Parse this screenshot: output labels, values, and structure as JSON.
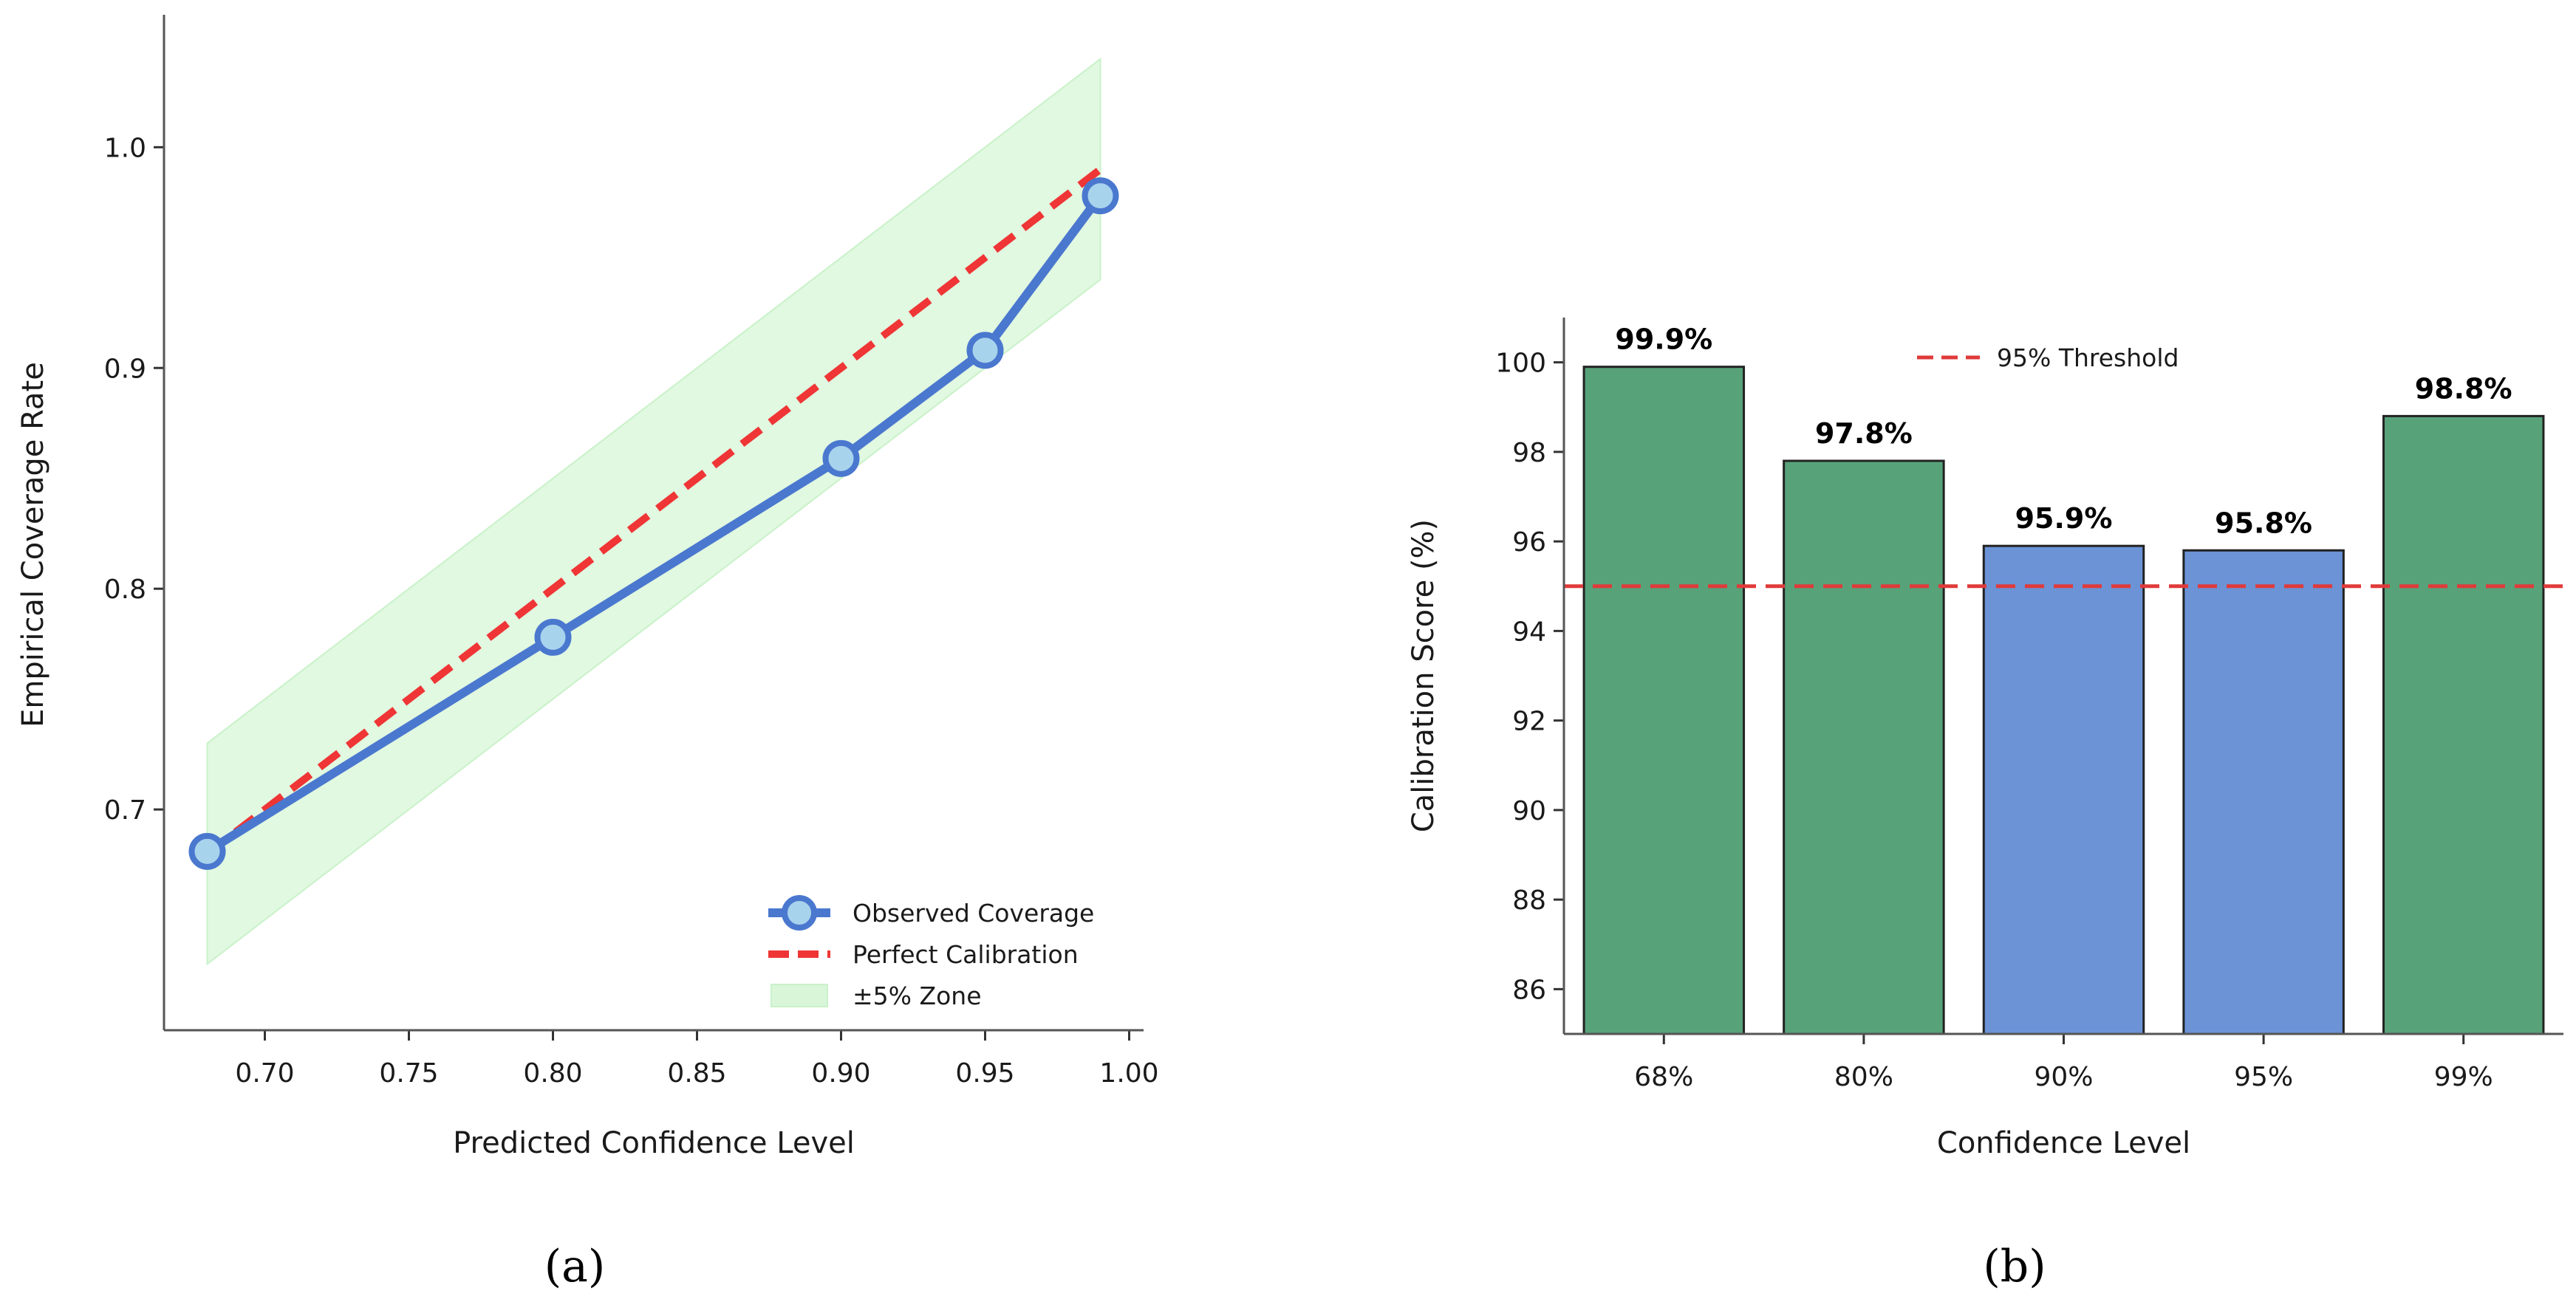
{
  "colors": {
    "observed": "#4a78cf",
    "marker_fill": "#a8d3ec",
    "perfect": "#ef3535",
    "zone": "#c9f2c9",
    "bar_green": "#58a27a",
    "bar_blue": "#6b93d6",
    "threshold": "#e03a3a"
  },
  "chart_data": [
    {
      "type": "line",
      "caption": "(a)",
      "xlabel": "Predicted Confidence Level",
      "ylabel": "Empirical Coverage Rate",
      "xlim": [
        0.665,
        1.005
      ],
      "ylim": [
        0.6,
        1.06
      ],
      "xticks": [
        0.7,
        0.75,
        0.8,
        0.85,
        0.9,
        0.95,
        1.0
      ],
      "xtick_labels": [
        "0.70",
        "0.75",
        "0.80",
        "0.85",
        "0.90",
        "0.95",
        "1.00"
      ],
      "yticks": [
        0.7,
        0.8,
        0.9,
        1.0
      ],
      "ytick_labels": [
        "0.7",
        "0.8",
        "0.9",
        "1.0"
      ],
      "series": [
        {
          "name": "Observed Coverage",
          "x": [
            0.68,
            0.8,
            0.9,
            0.95,
            0.99
          ],
          "y": [
            0.681,
            0.778,
            0.859,
            0.908,
            0.978
          ]
        },
        {
          "name": "Perfect Calibration",
          "x": [
            0.68,
            0.99
          ],
          "y": [
            0.68,
            0.99
          ]
        },
        {
          "name": "±5% Zone",
          "x": [
            0.68,
            0.99
          ],
          "lower": [
            0.63,
            0.94
          ],
          "upper": [
            0.73,
            1.04
          ]
        }
      ],
      "legend": {
        "position": "lower-right",
        "entries": [
          "Observed Coverage",
          "Perfect Calibration",
          "±5% Zone"
        ]
      }
    },
    {
      "type": "bar",
      "caption": "(b)",
      "xlabel": "Confidence Level",
      "ylabel": "Calibration Score (%)",
      "categories": [
        "68%",
        "80%",
        "90%",
        "95%",
        "99%"
      ],
      "values": [
        99.9,
        97.8,
        95.9,
        95.8,
        98.8
      ],
      "value_labels": [
        "99.9%",
        "97.8%",
        "95.9%",
        "95.8%",
        "98.8%"
      ],
      "bar_colors": [
        "green",
        "green",
        "blue",
        "blue",
        "green"
      ],
      "ylim": [
        85,
        101
      ],
      "yticks": [
        86,
        88,
        90,
        92,
        94,
        96,
        98,
        100
      ],
      "ytick_labels": [
        "86",
        "88",
        "90",
        "92",
        "94",
        "96",
        "98",
        "100"
      ],
      "threshold": {
        "label": "95% Threshold",
        "value": 95
      },
      "legend": {
        "position": "top-center",
        "entries": [
          "95% Threshold"
        ]
      }
    }
  ]
}
